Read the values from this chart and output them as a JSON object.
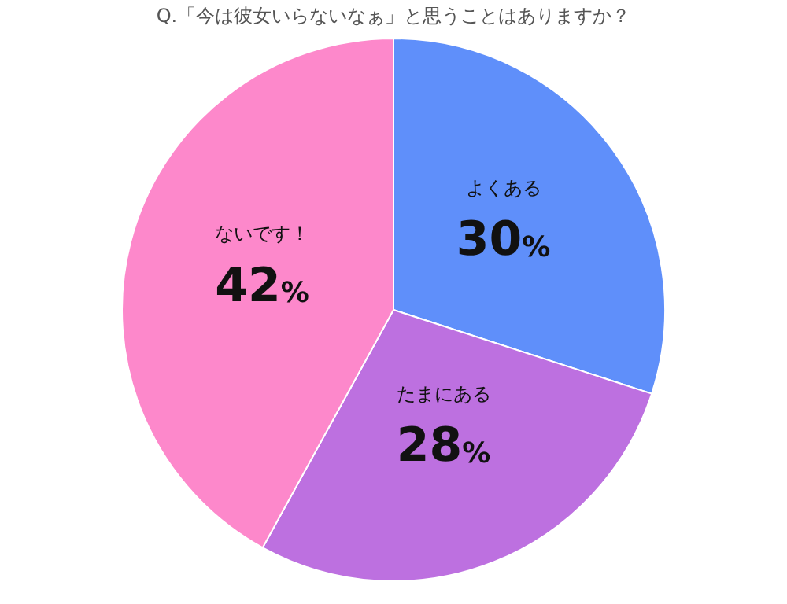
{
  "chart_data": {
    "type": "pie",
    "title": "Q.「今は彼女いらないなぁ」と思うことはありますか？",
    "categories": [
      "よくある",
      "たまにある",
      "ないです！"
    ],
    "values": [
      30,
      28,
      42
    ],
    "colors": [
      "#5f8ffa",
      "#bd70e0",
      "#fd88cb"
    ],
    "value_labels": [
      "30%",
      "28%",
      "42%"
    ],
    "legend": false
  }
}
